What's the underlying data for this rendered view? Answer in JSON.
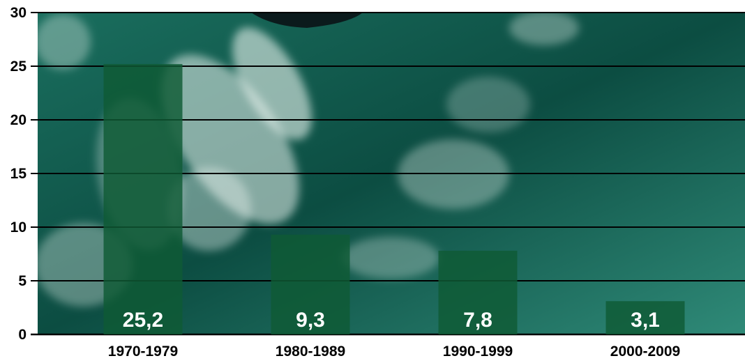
{
  "chart_data": {
    "type": "bar",
    "categories": [
      "1970-1979",
      "1980-1989",
      "1990-1999",
      "2000-2009"
    ],
    "values": [
      25.2,
      9.3,
      7.8,
      3.1
    ],
    "value_labels": [
      "25,2",
      "9,3",
      "7,8",
      "3,1"
    ],
    "title": "",
    "xlabel": "",
    "ylabel": "",
    "ylim": [
      0,
      30
    ],
    "yticks": [
      0,
      5,
      10,
      15,
      20,
      25,
      30
    ],
    "ytick_labels": [
      "0",
      "5",
      "10",
      "15",
      "20",
      "25",
      "30"
    ],
    "grid": true,
    "legend": "none"
  },
  "colors": {
    "bar": "#0f5a34",
    "water_dark": "#0c4d42",
    "water_mid": "#1a6e5e",
    "water_light": "#2f8a78",
    "foam": "#e9f3ef",
    "hull": "#0b1a1c",
    "grid": "#000000"
  }
}
